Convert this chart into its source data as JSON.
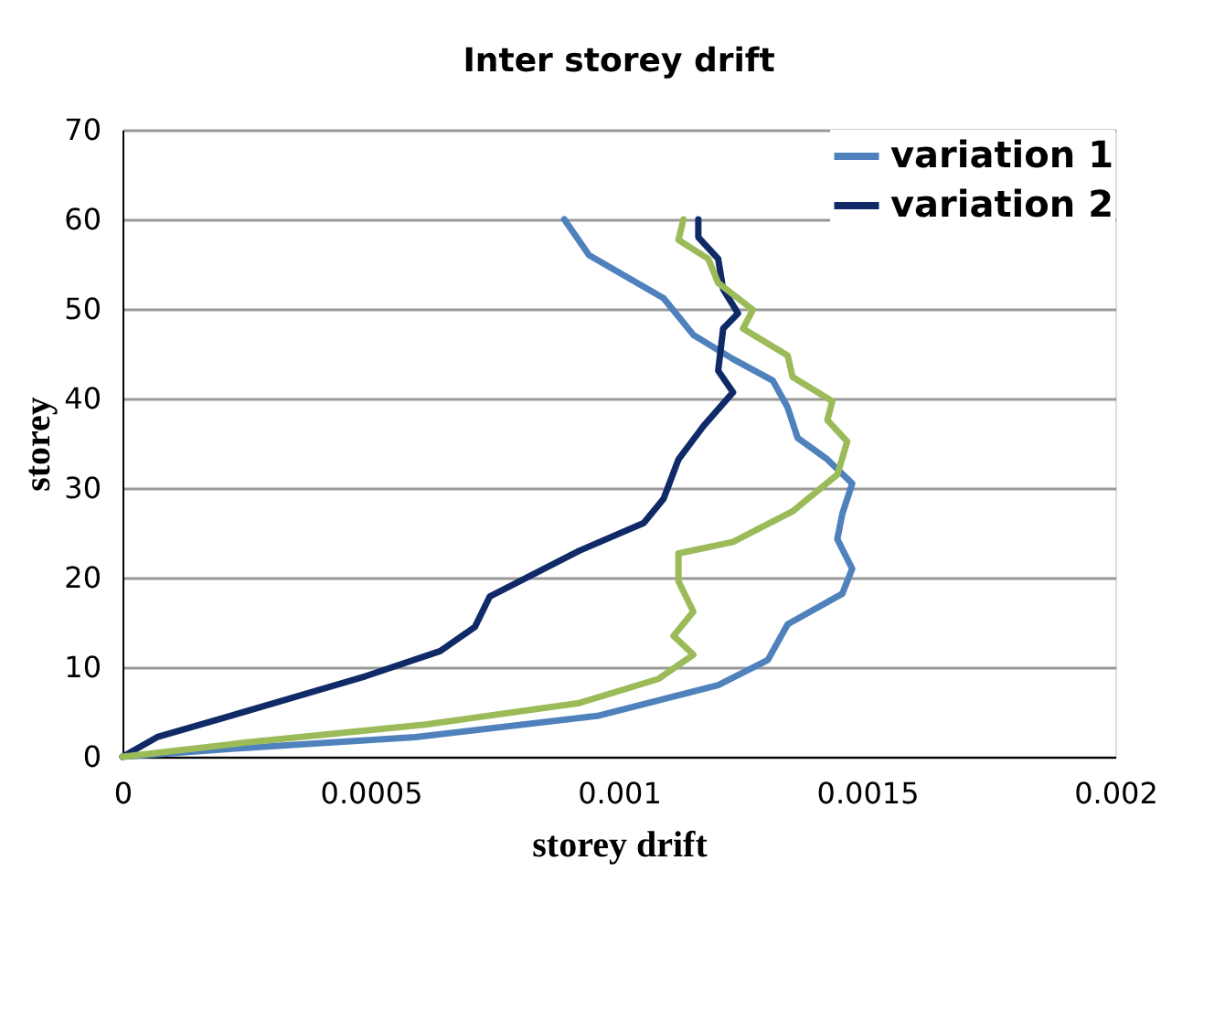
{
  "chart_data": {
    "type": "line",
    "title": "Inter storey drift",
    "xlabel": "storey drift",
    "ylabel": "storey",
    "xlim": [
      0,
      0.002
    ],
    "xticks": [
      0,
      0.0005,
      0.001,
      0.0015,
      0.002
    ],
    "ylim": [
      0,
      70
    ],
    "yticks": [
      0,
      10,
      20,
      30,
      40,
      50,
      60,
      70
    ],
    "grid": "y",
    "legend": "top right",
    "line_style": "solid",
    "marker": "none",
    "series": [
      {
        "name": "variation 1",
        "color": "#4f81bd",
        "x": [
          0.00089,
          0.00094,
          0.00109,
          0.00115,
          0.00123,
          0.00131,
          0.00134,
          0.00136,
          0.00142,
          0.00147,
          0.00145,
          0.00144,
          0.00147,
          0.00145,
          0.00134,
          0.0013,
          0.0012,
          0.00096,
          0.00059,
          0.00022,
          0
        ],
        "values": [
          60,
          56,
          51.2,
          47.1,
          44.4,
          42,
          39,
          35.6,
          33.2,
          30.5,
          27.1,
          24.3,
          21,
          18.2,
          14.8,
          10.8,
          8,
          4.6,
          2.2,
          0.9,
          0
        ]
      },
      {
        "name": "variation 2",
        "color": "#0f2a66",
        "x": [
          0.00116,
          0.00116,
          0.0012,
          0.00121,
          0.00124,
          0.00121,
          0.0012,
          0.00123,
          0.00117,
          0.00112,
          0.00109,
          0.00105,
          0.00092,
          0.00074,
          0.00071,
          0.00064,
          0.00049,
          0.00022,
          7e-05,
          0
        ],
        "values": [
          60,
          58,
          55.6,
          52.2,
          49.5,
          47.8,
          43.1,
          40.7,
          36.9,
          33.2,
          28.8,
          26.1,
          23,
          17.9,
          14.5,
          11.8,
          9,
          4.6,
          2.2,
          0
        ]
      },
      {
        "color": "#9bbb59",
        "x": [
          0.00113,
          0.00112,
          0.00118,
          0.0012,
          0.00127,
          0.00125,
          0.00134,
          0.00135,
          0.00143,
          0.00142,
          0.00146,
          0.00144,
          0.00135,
          0.00123,
          0.00112,
          0.00112,
          0.00115,
          0.00111,
          0.00115,
          0.00108,
          0.00092,
          0.00061,
          0.00025,
          0
        ],
        "values": [
          60,
          57.7,
          55.6,
          52.9,
          49.9,
          47.8,
          44.8,
          42.4,
          39.7,
          37.6,
          35.2,
          31.5,
          27.4,
          24,
          22.7,
          19.6,
          16.2,
          13.5,
          11.4,
          8.7,
          6,
          3.6,
          1.6,
          0
        ]
      }
    ]
  }
}
